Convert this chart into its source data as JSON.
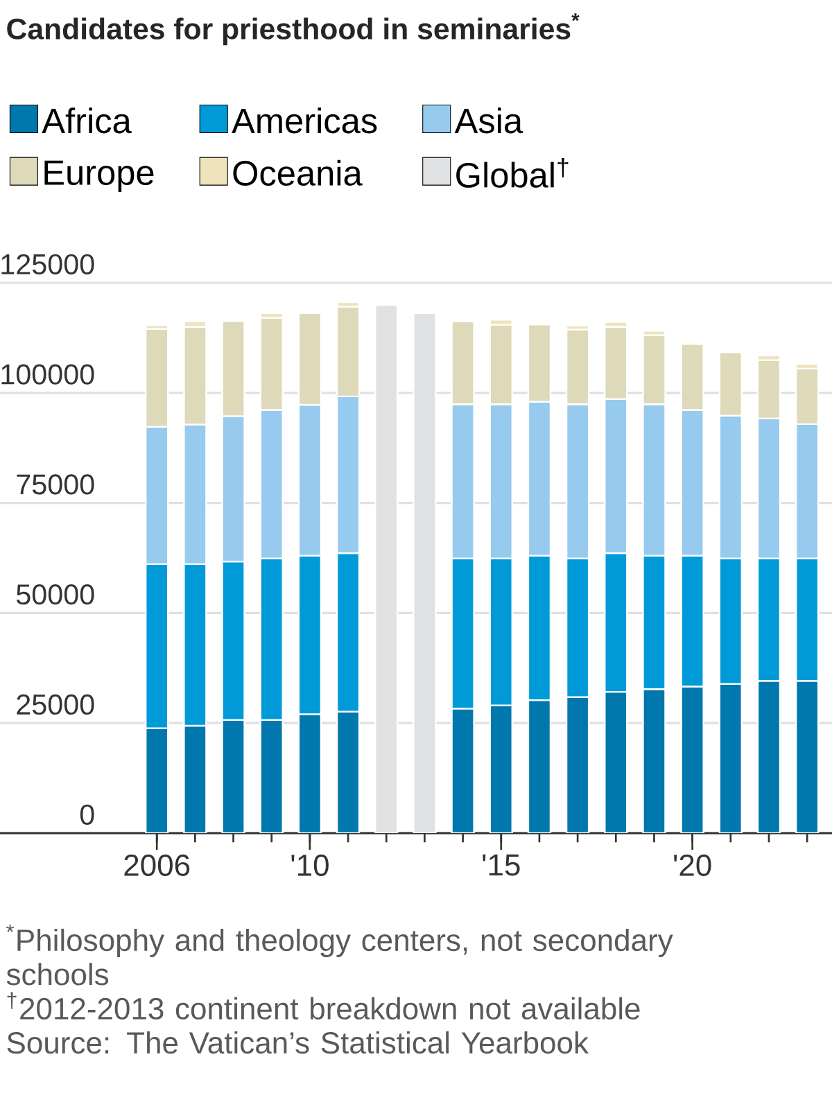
{
  "chart_data": {
    "type": "bar",
    "title": "Candidates for priesthood in seminaries$^{*}$",
    "categories": [
      "2006",
      null,
      null,
      null,
      "'10",
      null,
      null,
      null,
      null,
      "'15",
      null,
      null,
      null,
      null,
      "'20",
      null,
      null,
      null
    ],
    "stacked": true,
    "ylim": [
      0,
      125000
    ],
    "yticks": [
      0,
      25000,
      50000,
      75000,
      100000,
      125000
    ],
    "grid": "y",
    "legend": "top",
    "series": [
      {
        "name": "Africa",
        "color": "#0077ad",
        "values": [
          23800,
          24400,
          25700,
          25700,
          27000,
          27600,
          null,
          null,
          28300,
          29000,
          30200,
          30900,
          32100,
          32700,
          33300,
          33900,
          34600,
          34600
        ]
      },
      {
        "name": "Americas",
        "color": "#009ad9",
        "values": [
          37300,
          36700,
          36000,
          36700,
          36000,
          36000,
          null,
          null,
          34100,
          33400,
          32800,
          31500,
          31500,
          30300,
          29700,
          28500,
          27800,
          27800
        ]
      },
      {
        "name": "Asia",
        "color": "#96caee",
        "values": [
          31200,
          31700,
          33000,
          33700,
          34300,
          35600,
          null,
          null,
          35000,
          35000,
          35000,
          35000,
          35000,
          34400,
          33100,
          32400,
          31800,
          30500
        ]
      },
      {
        "name": "Europe",
        "color": "#ddd9b9",
        "values": [
          22200,
          22200,
          21600,
          20900,
          20800,
          20400,
          null,
          null,
          18800,
          18100,
          17500,
          17000,
          16400,
          15700,
          15000,
          14400,
          13200,
          12600
        ]
      },
      {
        "name": "Oceania",
        "color": "#efe3bb",
        "values": [
          900,
          1200,
          null,
          1100,
          null,
          1000,
          null,
          null,
          null,
          1100,
          null,
          900,
          1100,
          1000,
          null,
          null,
          1100,
          1100
        ]
      },
      {
        "name": "Global$^{†}$",
        "color": "#e0e1e3",
        "values": [
          null,
          null,
          null,
          null,
          null,
          null,
          120000,
          118100,
          null,
          null,
          null,
          null,
          null,
          null,
          null,
          null,
          null,
          null
        ]
      }
    ],
    "annotations": [
      "$^{*}$Philosophy and theology centers, not secondary schools",
      "$^{†}$2012-2013 continent breakdown not available",
      "Source: The Vatican’s Statistical Yearbook"
    ]
  }
}
